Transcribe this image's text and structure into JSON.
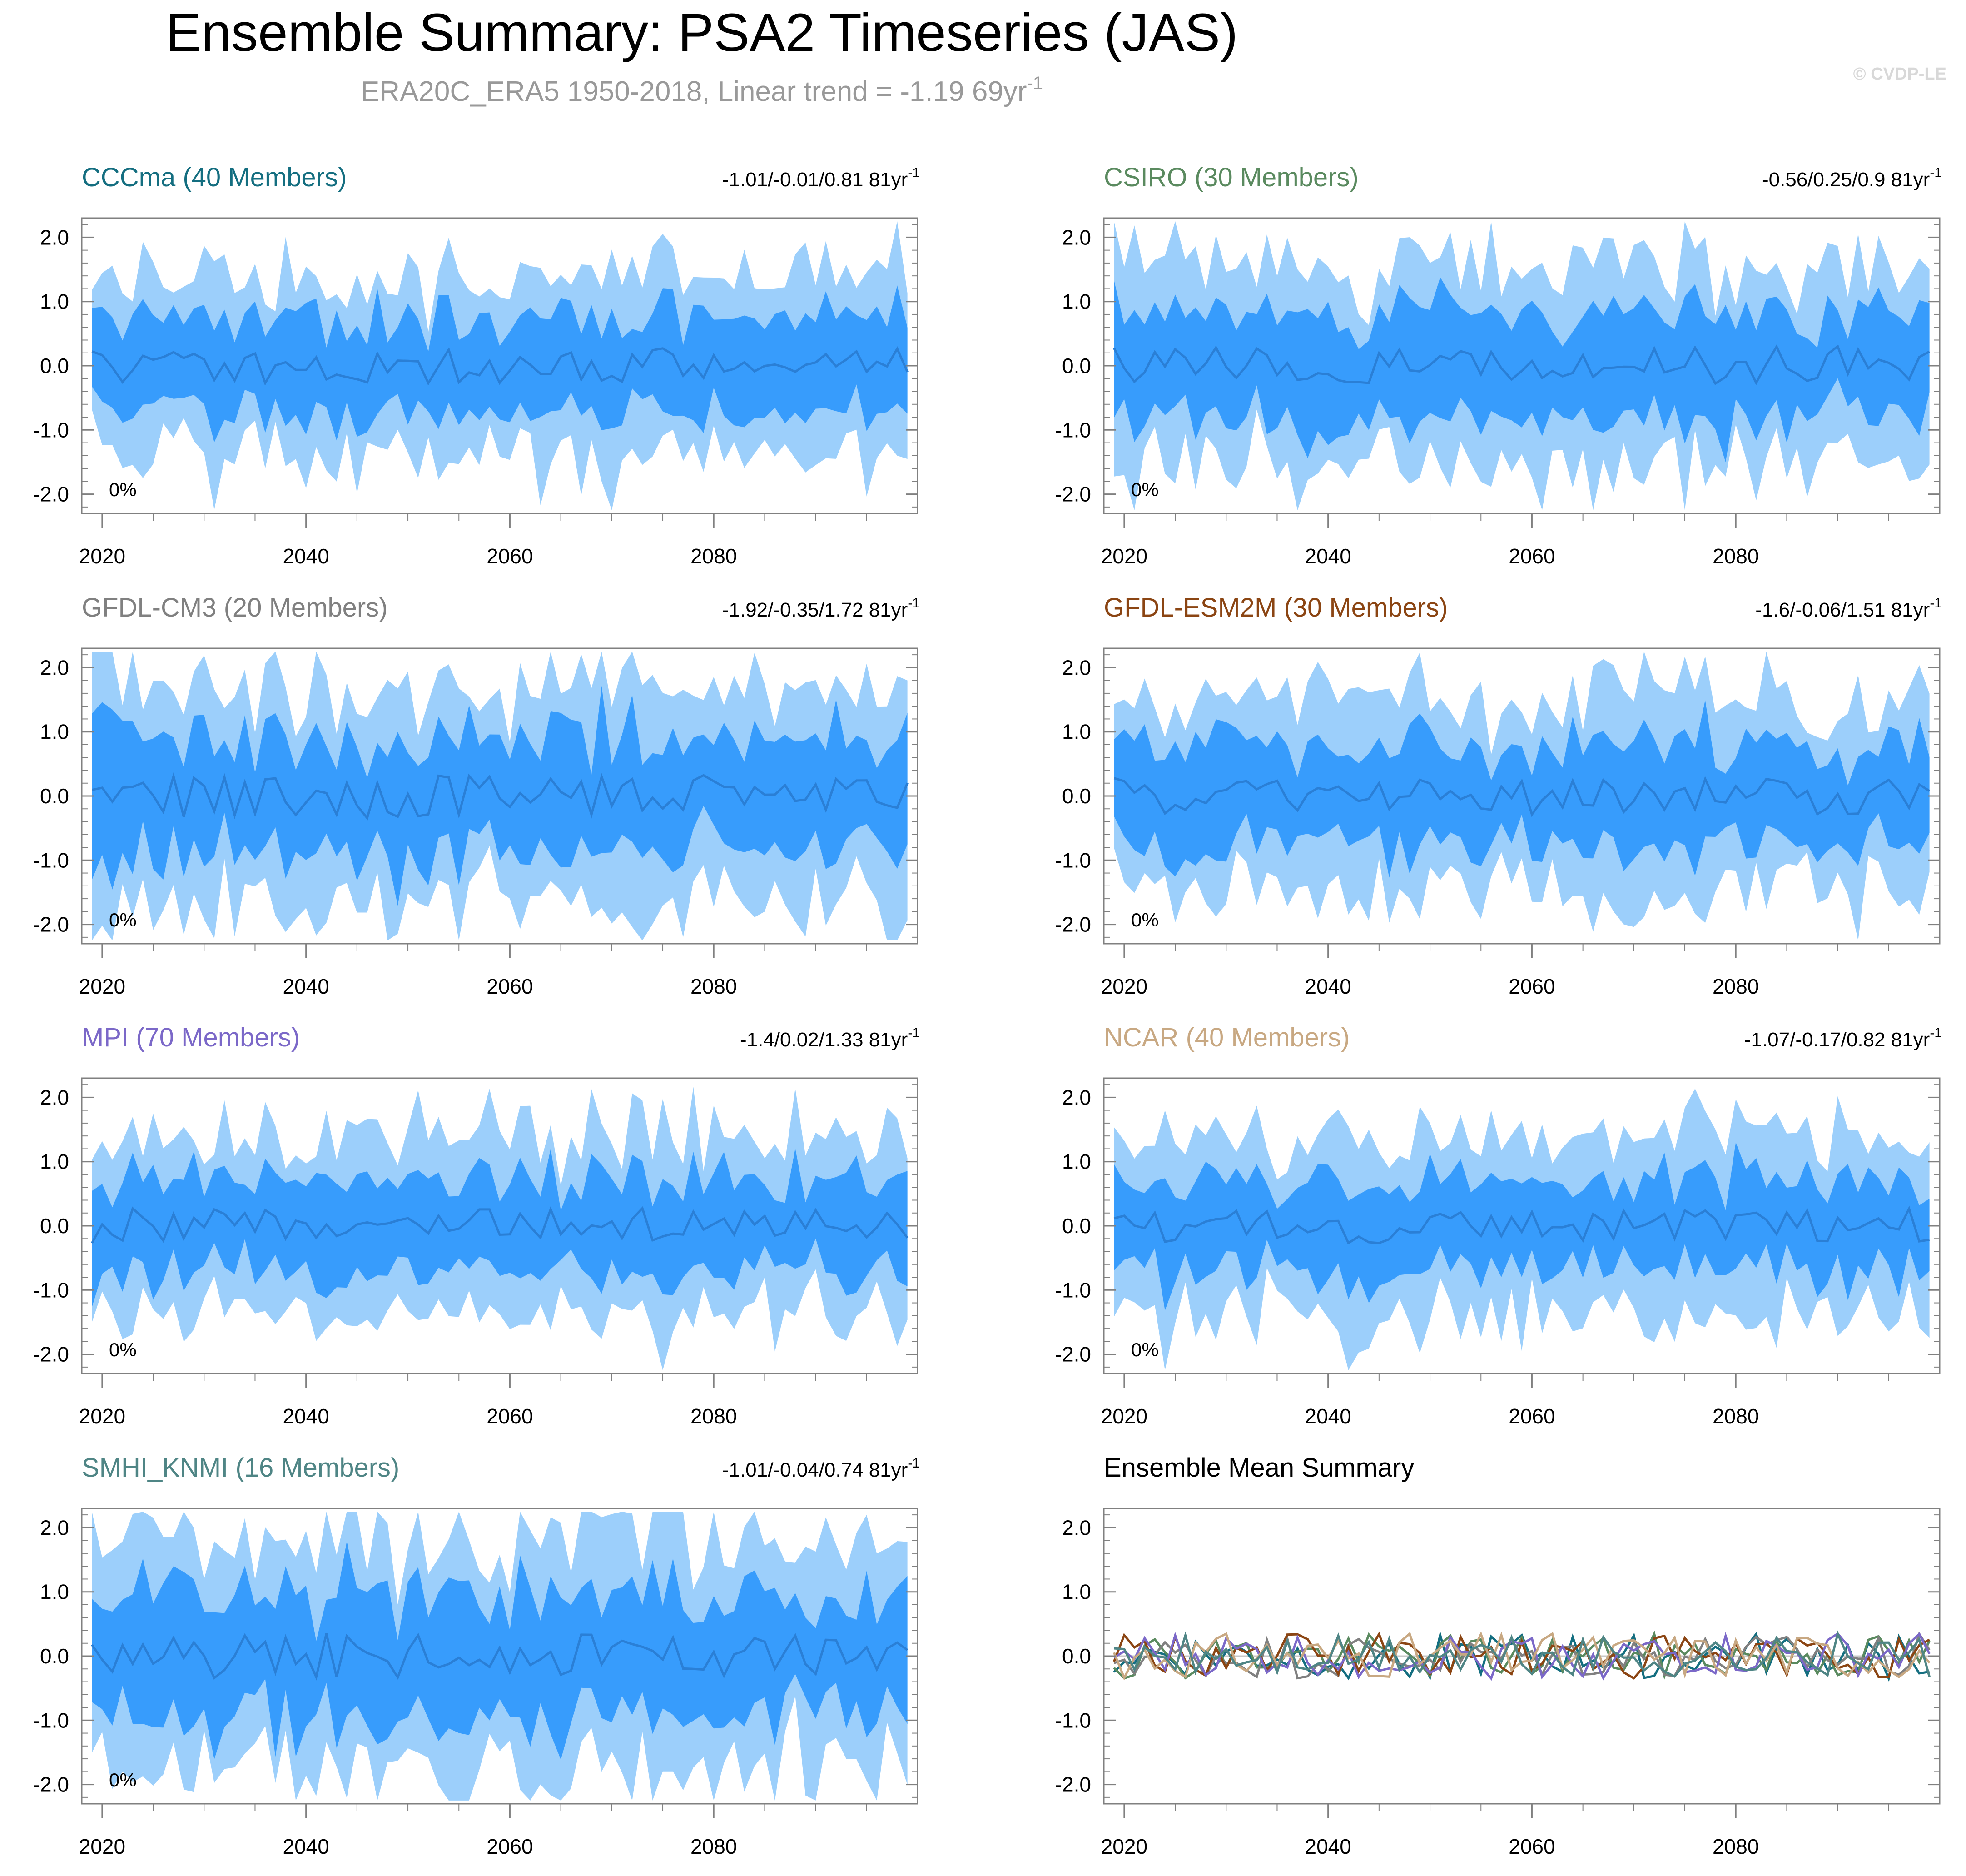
{
  "header": {
    "title": "Ensemble Summary: PSA2 Timeseries (JAS)",
    "subtitle_main": "ERA20C_ERA5 1950-2018, Linear trend = -1.19 69yr",
    "subtitle_sup": "-1",
    "watermark": "© CVDP-LE"
  },
  "colors": {
    "outer_band": "#9ccffb",
    "inner_band": "#379cfc",
    "mean_line": "#2a7fd6",
    "axis": "#808080"
  },
  "chart_data": [
    {
      "type": "area",
      "model": "CCCma",
      "title": "CCCma (40 Members)",
      "title_color": "#146e80",
      "trend": "-1.01/-0.01/0.81 81yr",
      "trend_sup": "-1",
      "pct_label": "0%",
      "seed": 11,
      "amp": 1.0,
      "x_ticks": [
        "2020",
        "2040",
        "2060",
        "2080"
      ],
      "y_ticks": [
        "2.0",
        "1.0",
        "0.0",
        "-1.0",
        "-2.0"
      ],
      "xlim": [
        2018,
        2100
      ],
      "ylim": [
        -2.3,
        2.3
      ]
    },
    {
      "type": "area",
      "model": "CSIRO",
      "title": "CSIRO (30 Members)",
      "title_color": "#5a8a5f",
      "trend": "-0.56/0.25/0.9 81yr",
      "trend_sup": "-1",
      "pct_label": "0%",
      "seed": 23,
      "amp": 1.15,
      "x_ticks": [
        "2020",
        "2040",
        "2060",
        "2080"
      ],
      "y_ticks": [
        "2.0",
        "1.0",
        "0.0",
        "-1.0",
        "-2.0"
      ],
      "xlim": [
        2018,
        2100
      ],
      "ylim": [
        -2.3,
        2.3
      ]
    },
    {
      "type": "area",
      "model": "GFDL-CM3",
      "title": "GFDL-CM3 (20 Members)",
      "title_color": "#808080",
      "trend": "-1.92/-0.35/1.72 81yr",
      "trend_sup": "-1",
      "pct_label": "0%",
      "seed": 37,
      "amp": 1.25,
      "x_ticks": [
        "2020",
        "2040",
        "2060",
        "2080"
      ],
      "y_ticks": [
        "2.0",
        "1.0",
        "0.0",
        "-1.0",
        "-2.0"
      ],
      "xlim": [
        2018,
        2100
      ],
      "ylim": [
        -2.3,
        2.3
      ]
    },
    {
      "type": "area",
      "model": "GFDL-ESM2M",
      "title": "GFDL-ESM2M (30 Members)",
      "title_color": "#8b4513",
      "trend": "-1.6/-0.06/1.51 81yr",
      "trend_sup": "-1",
      "pct_label": "0%",
      "seed": 41,
      "amp": 1.05,
      "x_ticks": [
        "2020",
        "2040",
        "2060",
        "2080"
      ],
      "y_ticks": [
        "2.0",
        "1.0",
        "0.0",
        "-1.0",
        "-2.0"
      ],
      "xlim": [
        2018,
        2100
      ],
      "ylim": [
        -2.3,
        2.3
      ]
    },
    {
      "type": "area",
      "model": "MPI",
      "title": "MPI (70 Members)",
      "title_color": "#7b68c8",
      "trend": "-1.4/0.02/1.33 81yr",
      "trend_sup": "-1",
      "pct_label": "0%",
      "seed": 53,
      "amp": 1.0,
      "x_ticks": [
        "2020",
        "2040",
        "2060",
        "2080"
      ],
      "y_ticks": [
        "2.0",
        "1.0",
        "0.0",
        "-1.0",
        "-2.0"
      ],
      "xlim": [
        2018,
        2100
      ],
      "ylim": [
        -2.3,
        2.3
      ]
    },
    {
      "type": "area",
      "model": "NCAR",
      "title": "NCAR (40 Members)",
      "title_color": "#c8a882",
      "trend": "-1.07/-0.17/0.82 81yr",
      "trend_sup": "-1",
      "pct_label": "0%",
      "seed": 67,
      "amp": 1.0,
      "x_ticks": [
        "2020",
        "2040",
        "2060",
        "2080"
      ],
      "y_ticks": [
        "2.0",
        "1.0",
        "0.0",
        "-1.0",
        "-2.0"
      ],
      "xlim": [
        2018,
        2100
      ],
      "ylim": [
        -2.3,
        2.3
      ]
    },
    {
      "type": "area",
      "model": "SMHI_KNMI",
      "title": "SMHI_KNMI (16 Members)",
      "title_color": "#4f8585",
      "trend": "-1.01/-0.04/0.74 81yr",
      "trend_sup": "-1",
      "pct_label": "0%",
      "seed": 79,
      "amp": 1.3,
      "x_ticks": [
        "2020",
        "2040",
        "2060",
        "2080"
      ],
      "y_ticks": [
        "2.0",
        "1.0",
        "0.0",
        "-1.0",
        "-2.0"
      ],
      "xlim": [
        2018,
        2100
      ],
      "ylim": [
        -2.3,
        2.3
      ]
    },
    {
      "type": "line",
      "model": "Ensemble Mean",
      "title": "Ensemble Mean Summary",
      "title_color": "#000000",
      "x_ticks": [
        "2020",
        "2040",
        "2060",
        "2080"
      ],
      "y_ticks": [
        "2.0",
        "1.0",
        "0.0",
        "-1.0",
        "-2.0"
      ],
      "xlim": [
        2018,
        2100
      ],
      "ylim": [
        -2.3,
        2.3
      ],
      "series": [
        {
          "name": "CCCma",
          "color": "#146e80",
          "seed": 11
        },
        {
          "name": "CSIRO",
          "color": "#5a8a5f",
          "seed": 23
        },
        {
          "name": "GFDL-CM3",
          "color": "#808080",
          "seed": 37
        },
        {
          "name": "GFDL-ESM2M",
          "color": "#8b4513",
          "seed": 41
        },
        {
          "name": "MPI",
          "color": "#7b68c8",
          "seed": 53
        },
        {
          "name": "NCAR",
          "color": "#c8a882",
          "seed": 67
        },
        {
          "name": "SMHI_KNMI",
          "color": "#4f8585",
          "seed": 79
        }
      ]
    }
  ]
}
